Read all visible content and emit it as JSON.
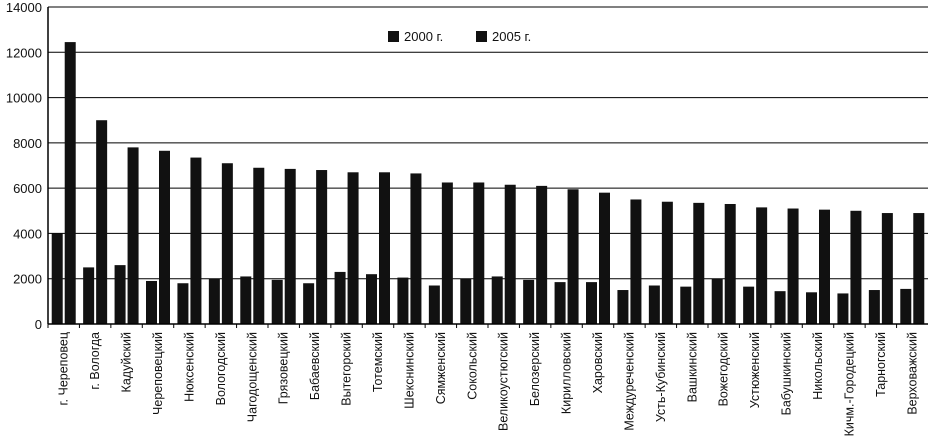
{
  "chart_data": {
    "type": "bar",
    "title": "",
    "xlabel": "",
    "ylabel": "",
    "ylim": [
      0,
      14000
    ],
    "yticks": [
      0,
      2000,
      4000,
      6000,
      8000,
      10000,
      12000,
      14000
    ],
    "grid": true,
    "legend_position": "top-right",
    "categories": [
      "г. Череповец",
      "г. Вологда",
      "Кадуйский",
      "Череповецкий",
      "Нюксенский",
      "Вологодский",
      "Чагодощенский",
      "Грязовецкий",
      "Бабаевский",
      "Вытегорский",
      "Тотемский",
      "Шекснинский",
      "Сямженский",
      "Сокольский",
      "Великоустюгский",
      "Белозерский",
      "Кирилловский",
      "Харовский",
      "Междуреченский",
      "Усть-Кубинский",
      "Вашкинский",
      "Вожегодский",
      "Устюженский",
      "Бабушкинский",
      "Никольский",
      "Кичм.-Городецкий",
      "Тарногский",
      "Верховажский"
    ],
    "series": [
      {
        "name": "2000 г.",
        "values": [
          4000,
          2500,
          2600,
          1900,
          1800,
          2000,
          2100,
          1950,
          1800,
          2300,
          2200,
          2050,
          1700,
          2000,
          2100,
          1950,
          1850,
          1850,
          1500,
          1700,
          1650,
          2000,
          1650,
          1450,
          1400,
          1350,
          1500,
          1550
        ]
      },
      {
        "name": "2005 г.",
        "values": [
          12450,
          9000,
          7800,
          7650,
          7350,
          7100,
          6900,
          6850,
          6800,
          6700,
          6700,
          6650,
          6250,
          6250,
          6150,
          6100,
          5950,
          5800,
          5500,
          5400,
          5350,
          5300,
          5150,
          5100,
          5050,
          5000,
          4900,
          4900
        ]
      }
    ],
    "colors": {
      "series_2000": "#111111",
      "series_2005": "#111111",
      "axis": "#000000",
      "grid": "#000000"
    }
  }
}
